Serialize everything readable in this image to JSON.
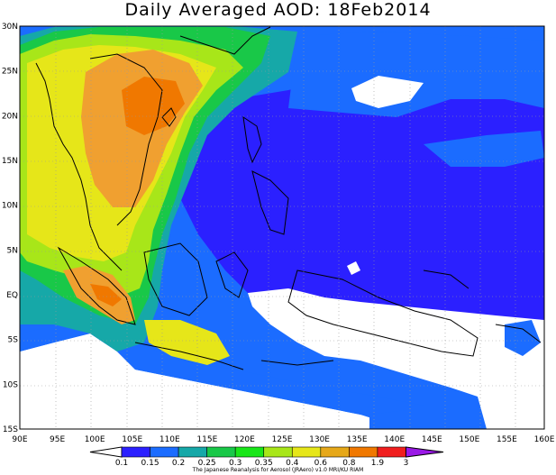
{
  "title": "Daily Averaged AOD: 18Feb2014",
  "credit": "The Japanese Reanalysis for Aerosol (JRAero) v1.0 MRI/KU RIAM",
  "axes": {
    "lon_labels": [
      "90E",
      "95E",
      "100E",
      "105E",
      "110E",
      "115E",
      "120E",
      "125E",
      "130E",
      "135E",
      "140E",
      "145E",
      "150E",
      "155E",
      "160E"
    ],
    "lat_labels": [
      "30N",
      "25N",
      "20N",
      "15N",
      "10N",
      "5N",
      "EQ",
      "5S",
      "10S",
      "15S"
    ]
  },
  "colorbar": {
    "labels": [
      "0.1",
      "0.15",
      "0.2",
      "0.25",
      "0.3",
      "0.35",
      "0.4",
      "0.6",
      "0.8",
      "1.9",
      "3"
    ],
    "colors": [
      "#2b20ff",
      "#1b6cff",
      "#16a8a8",
      "#19c848",
      "#19e619",
      "#a8e619",
      "#e6e619",
      "#e6a819",
      "#f07800",
      "#f01e1e",
      "#9a19e6"
    ]
  },
  "map_colors": {
    "white": "#ffffff",
    "blue": "#2b20ff",
    "lightblue": "#1b6cff",
    "teal": "#16a8a8",
    "green": "#19c848",
    "yellowgreen": "#a8e619",
    "yellow": "#e6e619",
    "orange": "#f0a030",
    "darkorange": "#f07800"
  }
}
